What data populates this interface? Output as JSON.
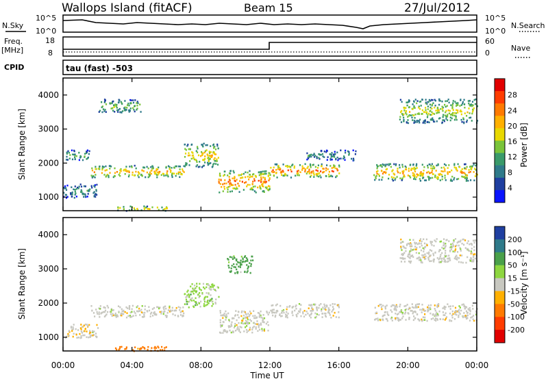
{
  "header": {
    "station": "Wallops Island (fitACF)",
    "beam": "Beam 15",
    "date": "27/Jul/2012"
  },
  "nsky_panel": {
    "left_label": "N.Sky",
    "left_ticks": [
      "10^5",
      "10^0"
    ],
    "right_label": "N.Search",
    "right_ticks": [
      "10^5",
      "10^0"
    ]
  },
  "freq_panel": {
    "left_label_line1": "Freq.",
    "left_label_line2": "[MHz]",
    "left_ticks": [
      "18",
      "8"
    ],
    "right_label": "Nave",
    "right_ticks": [
      "60",
      "0"
    ]
  },
  "cpid": {
    "label": "CPID",
    "value": "tau (fast) -503"
  },
  "power_colorbar": {
    "label": "Power [dB]",
    "ticks": [
      "28",
      "24",
      "20",
      "16",
      "12",
      "8",
      "4"
    ],
    "colors": [
      "#e10000",
      "#ff3c00",
      "#ff7a00",
      "#ffb000",
      "#e8d800",
      "#7ac43a",
      "#3a9a6a",
      "#2f7a8a",
      "#1f3fa0",
      "#0a14ff"
    ]
  },
  "velocity_colorbar": {
    "label": "Velocity [m s⁻¹]",
    "ticks": [
      "200",
      "100",
      "50",
      "15",
      "-15",
      "-50",
      "-100",
      "-200"
    ],
    "colors": [
      "#1f3fa0",
      "#2f7a8a",
      "#4aa04a",
      "#8ed640",
      "#c8c8c0",
      "#ffb000",
      "#ff7a00",
      "#ff3c00",
      "#e10000"
    ]
  },
  "chart_data": [
    {
      "type": "heatmap",
      "title": "",
      "ylabel": "Slant Range [km]",
      "xlabel": "",
      "yticks": [
        "1000",
        "2000",
        "3000",
        "4000"
      ],
      "ylim": [
        600,
        4500
      ],
      "xlim": [
        0,
        24
      ],
      "colorbar": "Power [dB]",
      "echo_bands": [
        {
          "t0": 0.0,
          "t1": 2.0,
          "r0": 1000,
          "r1": 1400,
          "power": 10
        },
        {
          "t0": 0.0,
          "t1": 1.5,
          "r0": 2100,
          "r1": 2400,
          "power": 12
        },
        {
          "t0": 1.6,
          "t1": 7.0,
          "r0": 1600,
          "r1": 1950,
          "power": 20
        },
        {
          "t0": 7.0,
          "t1": 9.0,
          "r0": 1900,
          "r1": 2600,
          "power": 18
        },
        {
          "t0": 9.0,
          "t1": 12.0,
          "r0": 1150,
          "r1": 1800,
          "power": 22
        },
        {
          "t0": 2.0,
          "t1": 4.5,
          "r0": 3500,
          "r1": 3900,
          "power": 14
        },
        {
          "t0": 12.0,
          "t1": 16.0,
          "r0": 1600,
          "r1": 2000,
          "power": 22
        },
        {
          "t0": 14.0,
          "t1": 17.0,
          "r0": 2100,
          "r1": 2400,
          "power": 10
        },
        {
          "t0": 18.0,
          "t1": 24.0,
          "r0": 1500,
          "r1": 2000,
          "power": 20
        },
        {
          "t0": 19.5,
          "t1": 24.0,
          "r0": 3200,
          "r1": 3900,
          "power": 16
        },
        {
          "t0": 3.0,
          "t1": 6.0,
          "r0": 620,
          "r1": 760,
          "power": 18
        }
      ]
    },
    {
      "type": "heatmap",
      "title": "",
      "ylabel": "Slant Range [km]",
      "xlabel": "Time UT",
      "xticks": [
        "00:00",
        "04:00",
        "08:00",
        "12:00",
        "16:00",
        "20:00",
        "00:00"
      ],
      "yticks": [
        "1000",
        "2000",
        "3000",
        "4000"
      ],
      "ylim": [
        600,
        4500
      ],
      "xlim": [
        0,
        24
      ],
      "colorbar": "Velocity [m s⁻¹]",
      "echo_bands": [
        {
          "t0": 0.0,
          "t1": 2.0,
          "r0": 1000,
          "r1": 1400,
          "velocity": -10
        },
        {
          "t0": 1.6,
          "t1": 7.0,
          "r0": 1600,
          "r1": 1950,
          "velocity": 0
        },
        {
          "t0": 7.0,
          "t1": 9.0,
          "r0": 1900,
          "r1": 2600,
          "velocity": 20
        },
        {
          "t0": 9.0,
          "t1": 12.0,
          "r0": 1150,
          "r1": 1800,
          "velocity": 0
        },
        {
          "t0": 12.0,
          "t1": 16.0,
          "r0": 1600,
          "r1": 2000,
          "velocity": 0
        },
        {
          "t0": 18.0,
          "t1": 24.0,
          "r0": 1500,
          "r1": 2000,
          "velocity": 0
        },
        {
          "t0": 19.5,
          "t1": 24.0,
          "r0": 3200,
          "r1": 3900,
          "velocity": 0
        },
        {
          "t0": 9.5,
          "t1": 11.0,
          "r0": 2900,
          "r1": 3400,
          "velocity": 40
        },
        {
          "t0": 3.0,
          "t1": 6.0,
          "r0": 620,
          "r1": 760,
          "velocity": -60
        }
      ]
    }
  ]
}
